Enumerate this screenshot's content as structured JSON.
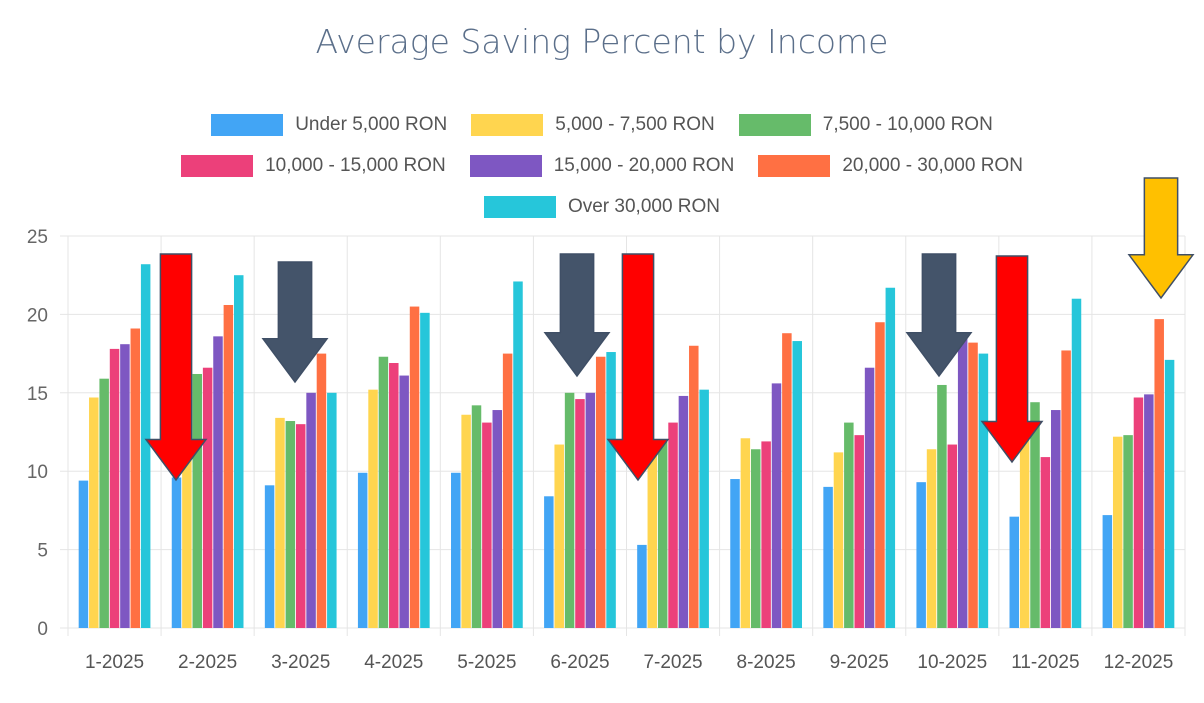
{
  "chart_data": {
    "type": "bar",
    "title": "Average Saving Percent by Income",
    "xlabel": "",
    "ylabel": "",
    "ylim": [
      0,
      25
    ],
    "yticks": [
      0,
      5,
      10,
      15,
      20,
      25
    ],
    "grid": true,
    "legend_position": "top",
    "categories": [
      "1-2025",
      "2-2025",
      "3-2025",
      "4-2025",
      "5-2025",
      "6-2025",
      "7-2025",
      "8-2025",
      "9-2025",
      "10-2025",
      "11-2025",
      "12-2025"
    ],
    "series": [
      {
        "name": "Under 5,000 RON",
        "color": "#42a5f5",
        "values": [
          9.4,
          9.6,
          9.1,
          9.9,
          9.9,
          8.4,
          5.3,
          9.5,
          9.0,
          9.3,
          7.1,
          7.2
        ]
      },
      {
        "name": "5,000 - 7,500 RON",
        "color": "#ffd54f",
        "values": [
          14.7,
          14.0,
          13.4,
          15.2,
          13.6,
          11.7,
          12.0,
          12.1,
          11.2,
          11.4,
          12.0,
          12.2
        ]
      },
      {
        "name": "7,500 - 10,000 RON",
        "color": "#66bb6a",
        "values": [
          15.9,
          16.2,
          13.2,
          17.3,
          14.2,
          15.0,
          11.9,
          11.4,
          13.1,
          15.5,
          14.4,
          12.3
        ]
      },
      {
        "name": "10,000 - 15,000 RON",
        "color": "#ec407a",
        "values": [
          17.8,
          16.6,
          13.0,
          16.9,
          13.1,
          14.6,
          13.1,
          11.9,
          12.3,
          11.7,
          10.9,
          14.7
        ]
      },
      {
        "name": "15,000 - 20,000 RON",
        "color": "#7e57c2",
        "values": [
          18.1,
          18.6,
          15.0,
          16.1,
          13.9,
          15.0,
          14.8,
          15.6,
          16.6,
          18.8,
          13.9,
          14.9
        ]
      },
      {
        "name": "20,000 - 30,000 RON",
        "color": "#ff7043",
        "values": [
          19.1,
          20.6,
          17.5,
          20.5,
          17.5,
          17.3,
          18.0,
          18.8,
          19.5,
          18.2,
          17.7,
          19.7
        ]
      },
      {
        "name": "Over 30,000 RON",
        "color": "#26c6da",
        "values": [
          23.2,
          22.5,
          15.0,
          20.1,
          22.1,
          17.6,
          15.2,
          18.3,
          21.7,
          17.5,
          21.0,
          17.1
        ]
      }
    ],
    "annotations": [
      {
        "type": "arrow-down",
        "color": "#ff0000",
        "category": "2-2025"
      },
      {
        "type": "arrow-down",
        "color": "#44546a",
        "category": "3-2025"
      },
      {
        "type": "arrow-down",
        "color": "#44546a",
        "category": "6-2025"
      },
      {
        "type": "arrow-down",
        "color": "#ff0000",
        "category": "7-2025"
      },
      {
        "type": "arrow-down",
        "color": "#44546a",
        "category": "10-2025"
      },
      {
        "type": "arrow-down",
        "color": "#ff0000",
        "category": "11-2025"
      },
      {
        "type": "arrow-down",
        "color": "#ffc000",
        "category": "12-2025"
      }
    ]
  }
}
